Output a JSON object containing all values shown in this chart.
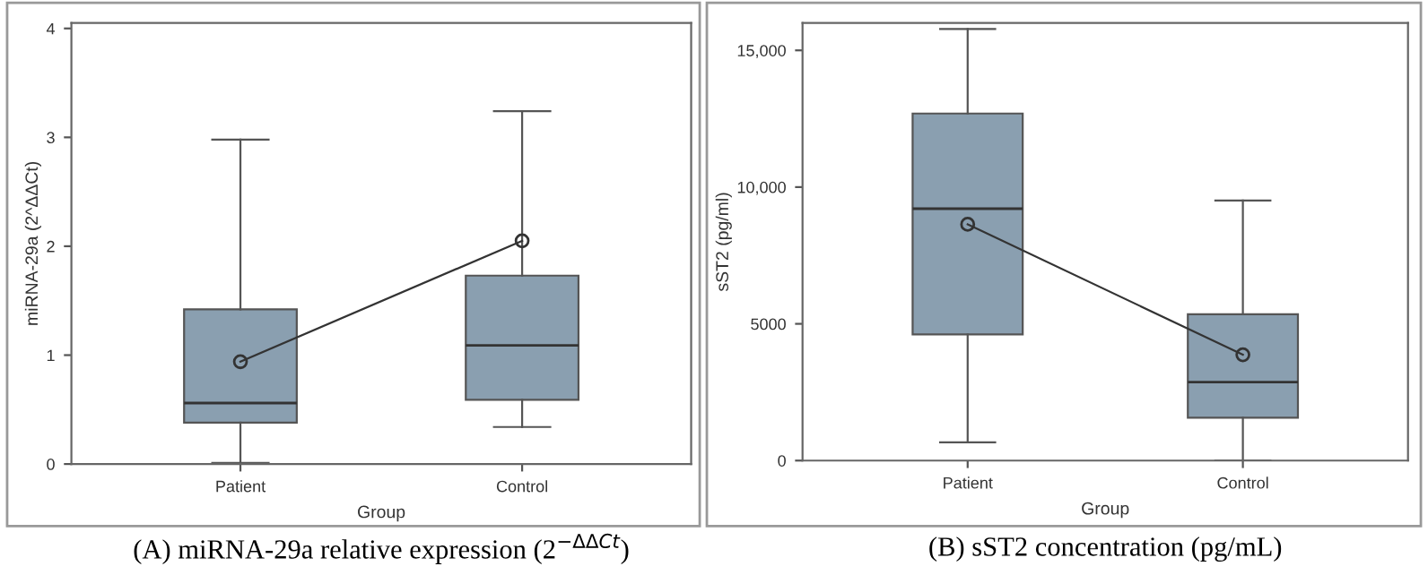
{
  "chart_data": [
    {
      "type": "box",
      "title": "(A) miRNA-29a relative expression (2$^{−ΔΔCt}$)",
      "xlabel": "Group",
      "ylabel": "miRNA-29a (2^ΔΔCt)",
      "categories": [
        "Patient",
        "Control"
      ],
      "ylim": [
        0,
        4.05
      ],
      "yticks": [
        0,
        1,
        2,
        3,
        4
      ],
      "grid": false,
      "legend": false,
      "series": [
        {
          "color": "#8a9fb0",
          "boxes": [
            {
              "low": 0.01,
              "q1": 0.38,
              "median": 0.56,
              "q3": 1.42,
              "high": 2.98
            },
            {
              "low": 0.34,
              "q1": 0.59,
              "median": 1.09,
              "q3": 1.73,
              "high": 3.24
            }
          ]
        },
        {
          "type": "line",
          "color": "#333333",
          "marker": "circle",
          "values": [
            0.94,
            2.05
          ]
        }
      ]
    },
    {
      "type": "box",
      "title": "(B) sST2 concentration (pg/mL)",
      "xlabel": "Group",
      "ylabel": "sST2 (pg/ml)",
      "categories": [
        "Patient",
        "Control"
      ],
      "ylim": [
        0,
        16000
      ],
      "yticks": [
        0,
        5000,
        {
          "value": 10000,
          "label": "10,000"
        },
        {
          "value": 15000,
          "label": "15,000"
        }
      ],
      "grid": false,
      "legend": false,
      "series": [
        {
          "color": "#8a9fb0",
          "boxes": [
            {
              "low": 670,
              "q1": 4610,
              "median": 9210,
              "q3": 12690,
              "high": 15780
            },
            {
              "low": 0,
              "q1": 1570,
              "median": 2870,
              "q3": 5350,
              "high": 9510
            }
          ]
        },
        {
          "type": "line",
          "color": "#333333",
          "marker": "circle",
          "values": [
            8640,
            3870
          ]
        }
      ]
    }
  ]
}
